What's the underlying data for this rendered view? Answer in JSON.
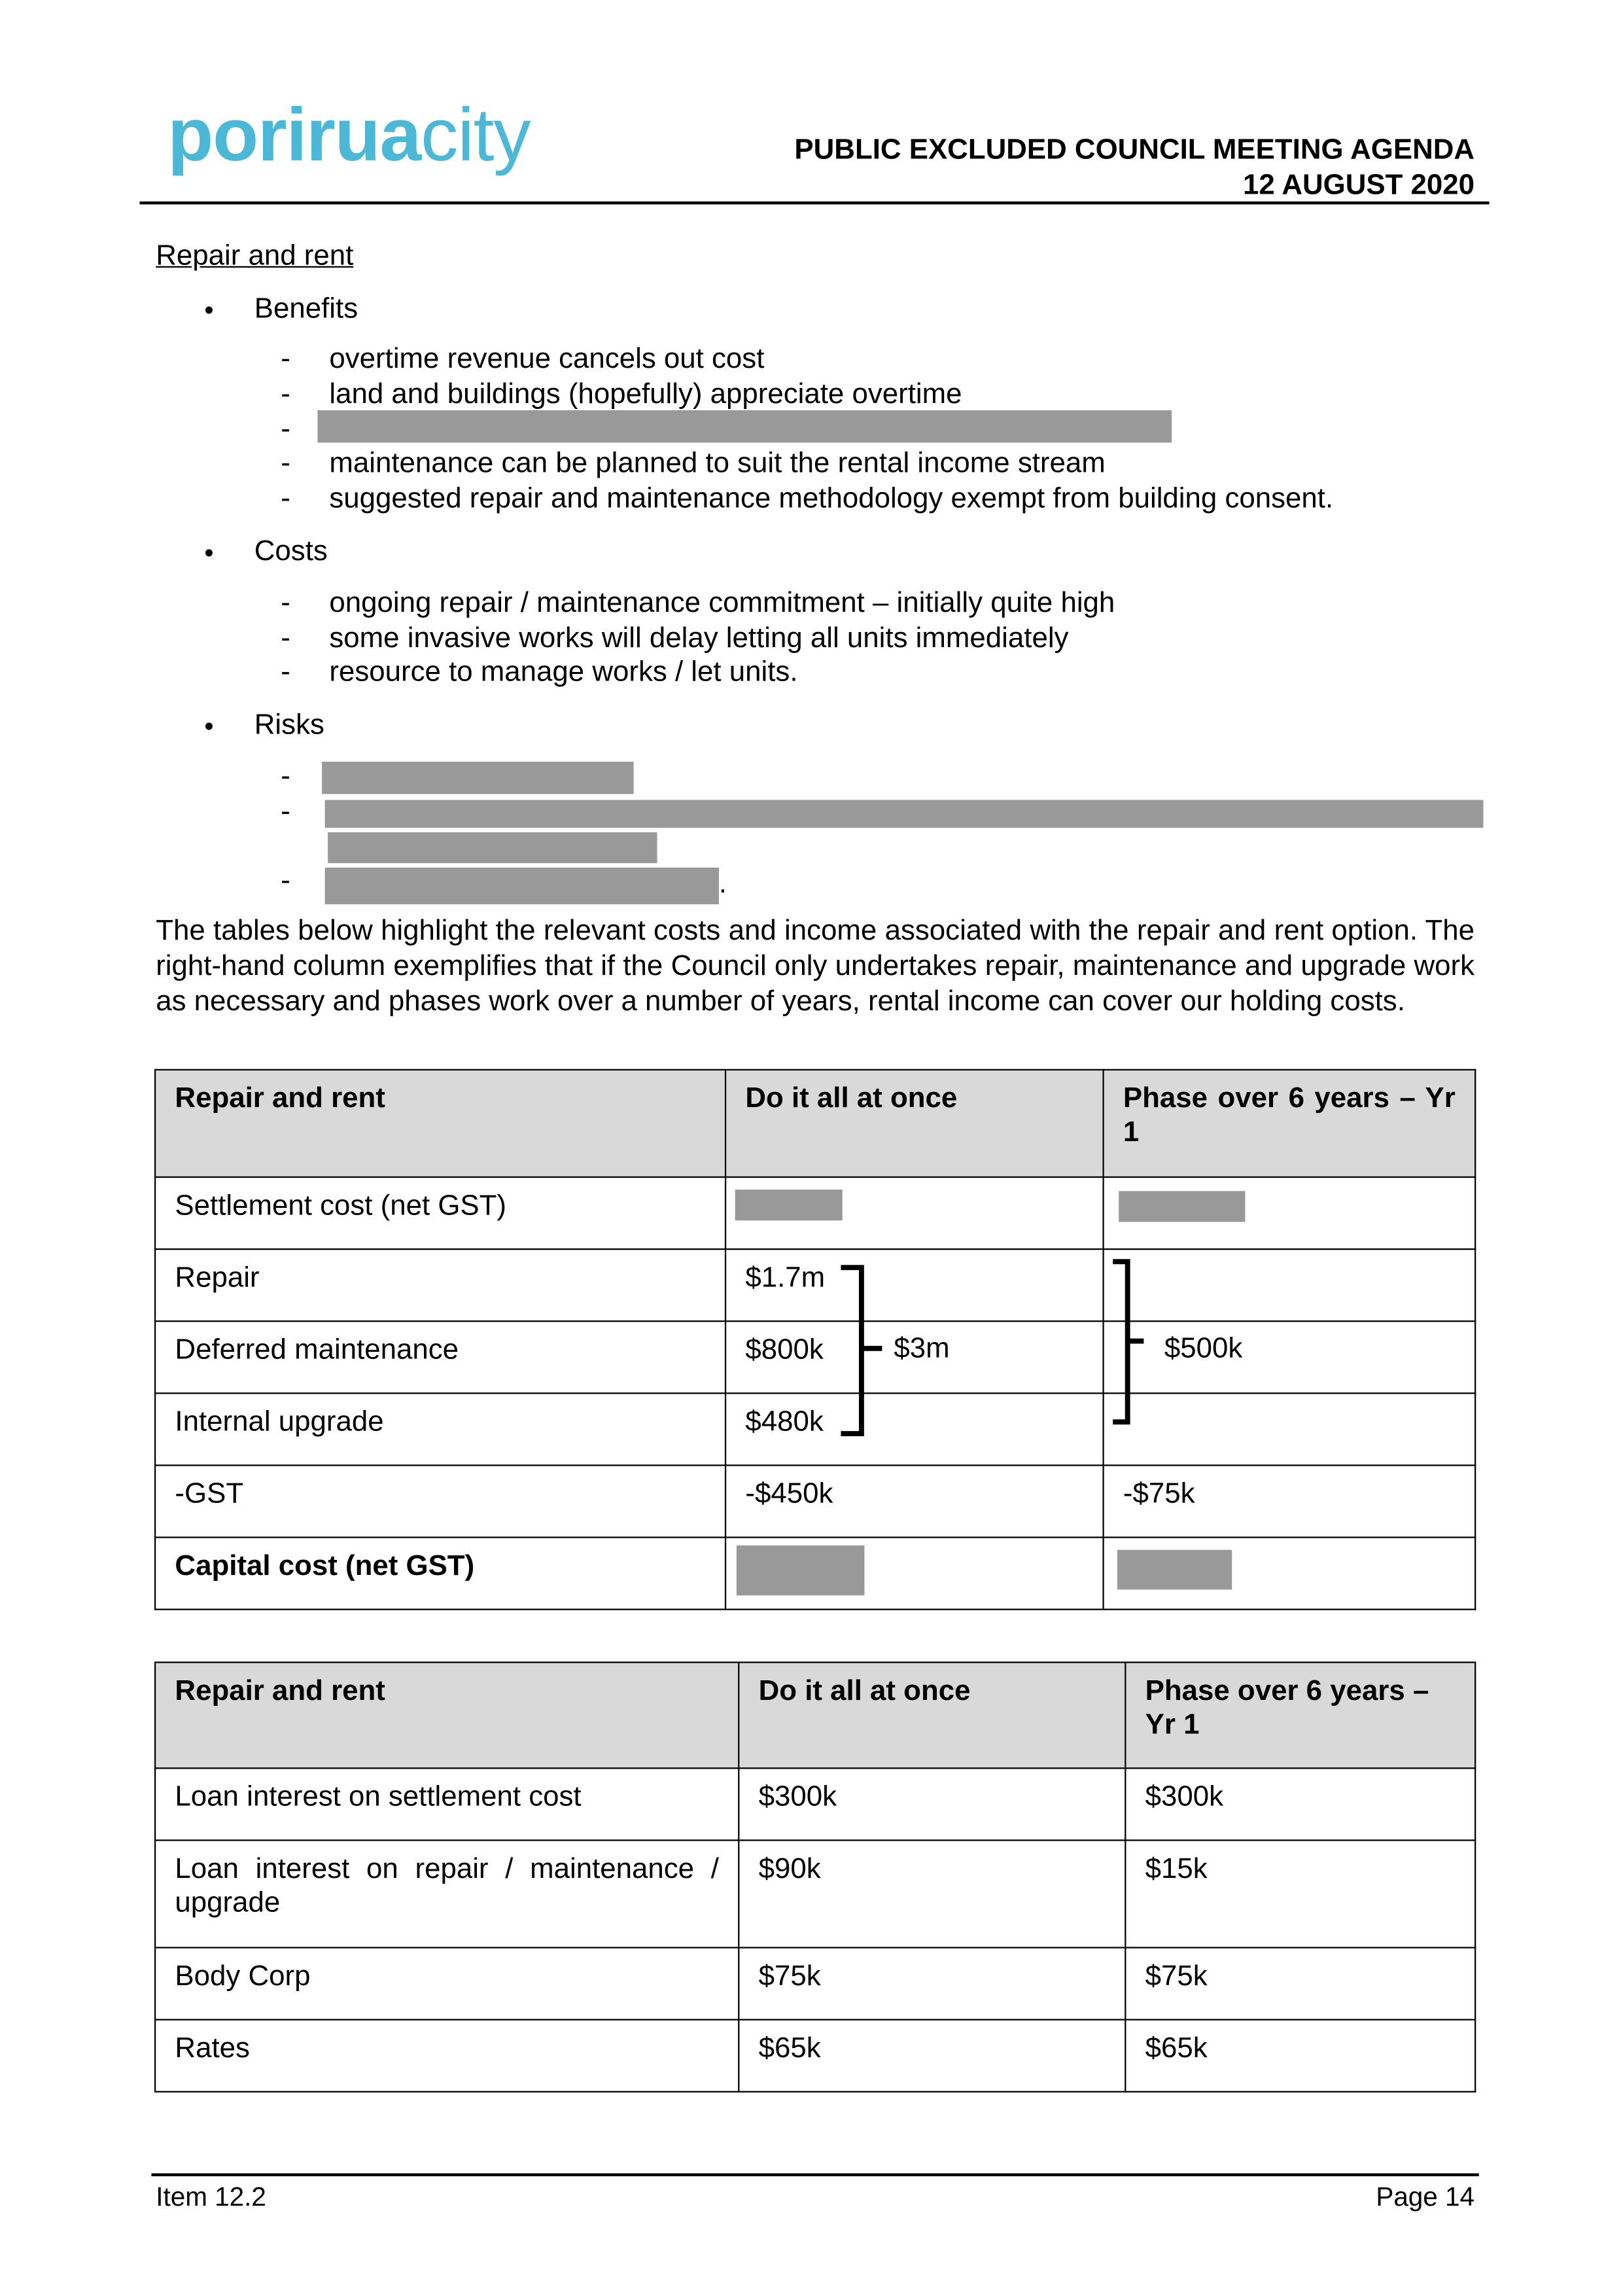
{
  "header": {
    "logo_bold": "porirua",
    "logo_light": "city",
    "title": "PUBLIC EXCLUDED COUNCIL MEETING AGENDA",
    "date": "12 AUGUST 2020",
    "brand_color": "#4ab8d6"
  },
  "section": {
    "heading": "Repair and rent",
    "benefits": {
      "label": "Benefits",
      "items": [
        "overtime revenue cancels out cost",
        "land and buildings (hopefully) appreciate overtime",
        "",
        "maintenance can be planned to suit the rental income stream",
        "suggested repair and maintenance methodology exempt from building consent."
      ]
    },
    "costs": {
      "label": "Costs",
      "items": [
        "ongoing repair / maintenance commitment – initially quite high",
        "some invasive works will delay letting all units immediately",
        "resource to manage works / let units."
      ]
    },
    "risks": {
      "label": "Risks"
    },
    "paragraph": "The tables below highlight the relevant costs and income associated with the repair and rent option. The right-hand column exemplifies that if the Council only undertakes repair, maintenance and upgrade work as necessary and phases work over a number of years, rental income can cover our holding costs."
  },
  "table1": {
    "headers": [
      "Repair and rent",
      "Do it all at once",
      "Phase over 6 years – Yr 1"
    ],
    "rows": [
      {
        "label": "Settlement cost (net GST)",
        "a": "",
        "b": ""
      },
      {
        "label": "Repair",
        "a": "$1.7m",
        "b": ""
      },
      {
        "label": "Deferred maintenance",
        "a": "$800k",
        "b": ""
      },
      {
        "label": "Internal upgrade",
        "a": "$480k",
        "b": ""
      },
      {
        "label": "-GST",
        "a": "-$450k",
        "b": "-$75k"
      },
      {
        "label": "Capital cost (net GST)",
        "a": "",
        "b": ""
      }
    ],
    "group_total_a": "$3m",
    "group_total_b": "$500k"
  },
  "table2": {
    "headers": [
      "Repair and rent",
      "Do it all at once",
      "Phase over 6 years – Yr 1"
    ],
    "rows": [
      {
        "label": "Loan interest on settlement cost",
        "a": "$300k",
        "b": "$300k"
      },
      {
        "label": "Loan interest on repair / maintenance / upgrade",
        "a": "$90k",
        "b": "$15k"
      },
      {
        "label": "Body Corp",
        "a": "$75k",
        "b": "$75k"
      },
      {
        "label": "Rates",
        "a": "$65k",
        "b": "$65k"
      }
    ]
  },
  "footer": {
    "item": "Item 12.2",
    "page": "Page 14"
  }
}
